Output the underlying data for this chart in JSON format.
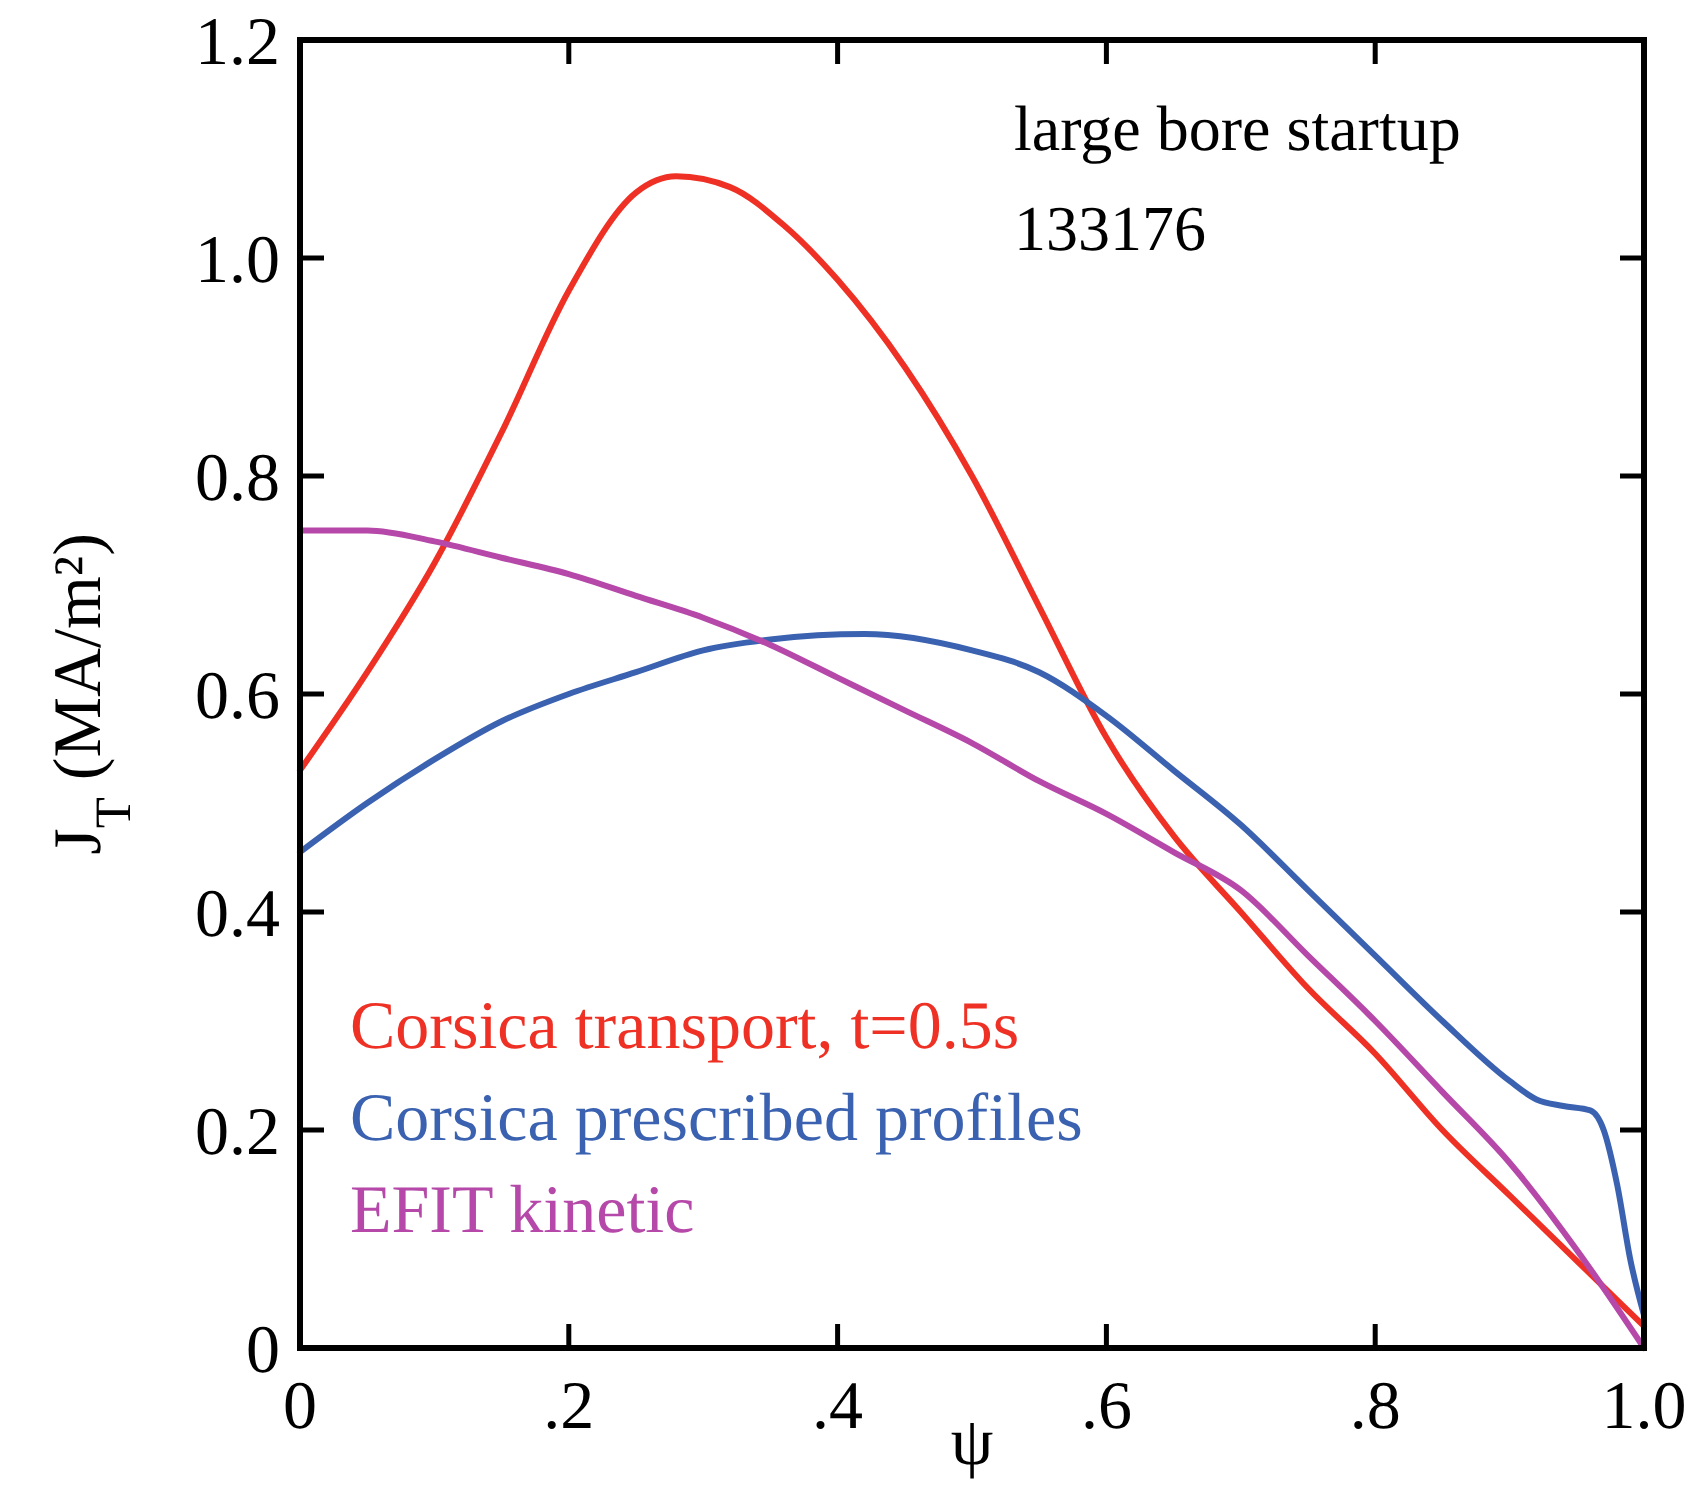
{
  "chart_data": {
    "type": "line",
    "xlabel": "ψ",
    "ylabel": "J$_{T}$ (MA/m²)",
    "xlim": [
      0,
      1.0
    ],
    "ylim": [
      0,
      1.2
    ],
    "xticks": [
      0,
      {
        "value": 0.2,
        "label": ".2"
      },
      {
        "value": 0.4,
        "label": ".4"
      },
      {
        "value": 0.6,
        "label": ".6"
      },
      {
        "value": 0.8,
        "label": ".8"
      },
      {
        "value": 1.0,
        "label": "1.0"
      }
    ],
    "yticks": [
      0,
      {
        "value": 0.2,
        "label": "0.2"
      },
      {
        "value": 0.4,
        "label": "0.4"
      },
      {
        "value": 0.6,
        "label": "0.6"
      },
      {
        "value": 0.8,
        "label": "0.8"
      },
      {
        "value": 1.0,
        "label": "1.0"
      },
      {
        "value": 1.2,
        "label": "1.2"
      }
    ],
    "grid": false,
    "legend": "bottom left",
    "marker": "none",
    "line_style": "solid",
    "annotations": [
      "large bore startup",
      "133176"
    ],
    "series": [
      {
        "name": "Corsica transport, t=0.5s",
        "color": "#ee3124",
        "x": [
          0,
          0.05,
          0.1,
          0.15,
          0.2,
          0.25,
          0.28,
          0.32,
          0.36,
          0.4,
          0.45,
          0.5,
          0.55,
          0.6,
          0.65,
          0.7,
          0.75,
          0.8,
          0.85,
          0.9,
          0.95,
          1.0
        ],
        "values": [
          0.53,
          0.62,
          0.72,
          0.84,
          0.97,
          1.06,
          1.075,
          1.065,
          1.03,
          0.98,
          0.9,
          0.8,
          0.68,
          0.56,
          0.47,
          0.4,
          0.33,
          0.27,
          0.2,
          0.14,
          0.08,
          0.02
        ]
      },
      {
        "name": "Corsica prescribed profiles",
        "color": "#3a62b0",
        "x": [
          0,
          0.05,
          0.1,
          0.15,
          0.2,
          0.25,
          0.3,
          0.35,
          0.42,
          0.5,
          0.55,
          0.6,
          0.65,
          0.7,
          0.75,
          0.8,
          0.85,
          0.9,
          0.92,
          0.94,
          0.96,
          0.97,
          0.98,
          0.99,
          1.0
        ],
        "values": [
          0.455,
          0.5,
          0.54,
          0.575,
          0.6,
          0.62,
          0.64,
          0.65,
          0.655,
          0.64,
          0.62,
          0.58,
          0.53,
          0.48,
          0.42,
          0.36,
          0.3,
          0.245,
          0.228,
          0.222,
          0.218,
          0.2,
          0.15,
          0.08,
          0.03
        ]
      },
      {
        "name": "EFIT kinetic",
        "color": "#b548a8",
        "x": [
          0,
          0.05,
          0.1,
          0.15,
          0.2,
          0.25,
          0.3,
          0.35,
          0.4,
          0.45,
          0.5,
          0.55,
          0.6,
          0.65,
          0.7,
          0.75,
          0.8,
          0.85,
          0.9,
          0.95,
          1.0
        ],
        "values": [
          0.75,
          0.75,
          0.74,
          0.725,
          0.71,
          0.69,
          0.67,
          0.645,
          0.615,
          0.585,
          0.555,
          0.52,
          0.49,
          0.455,
          0.42,
          0.36,
          0.3,
          0.235,
          0.17,
          0.09,
          0.0
        ]
      }
    ]
  }
}
